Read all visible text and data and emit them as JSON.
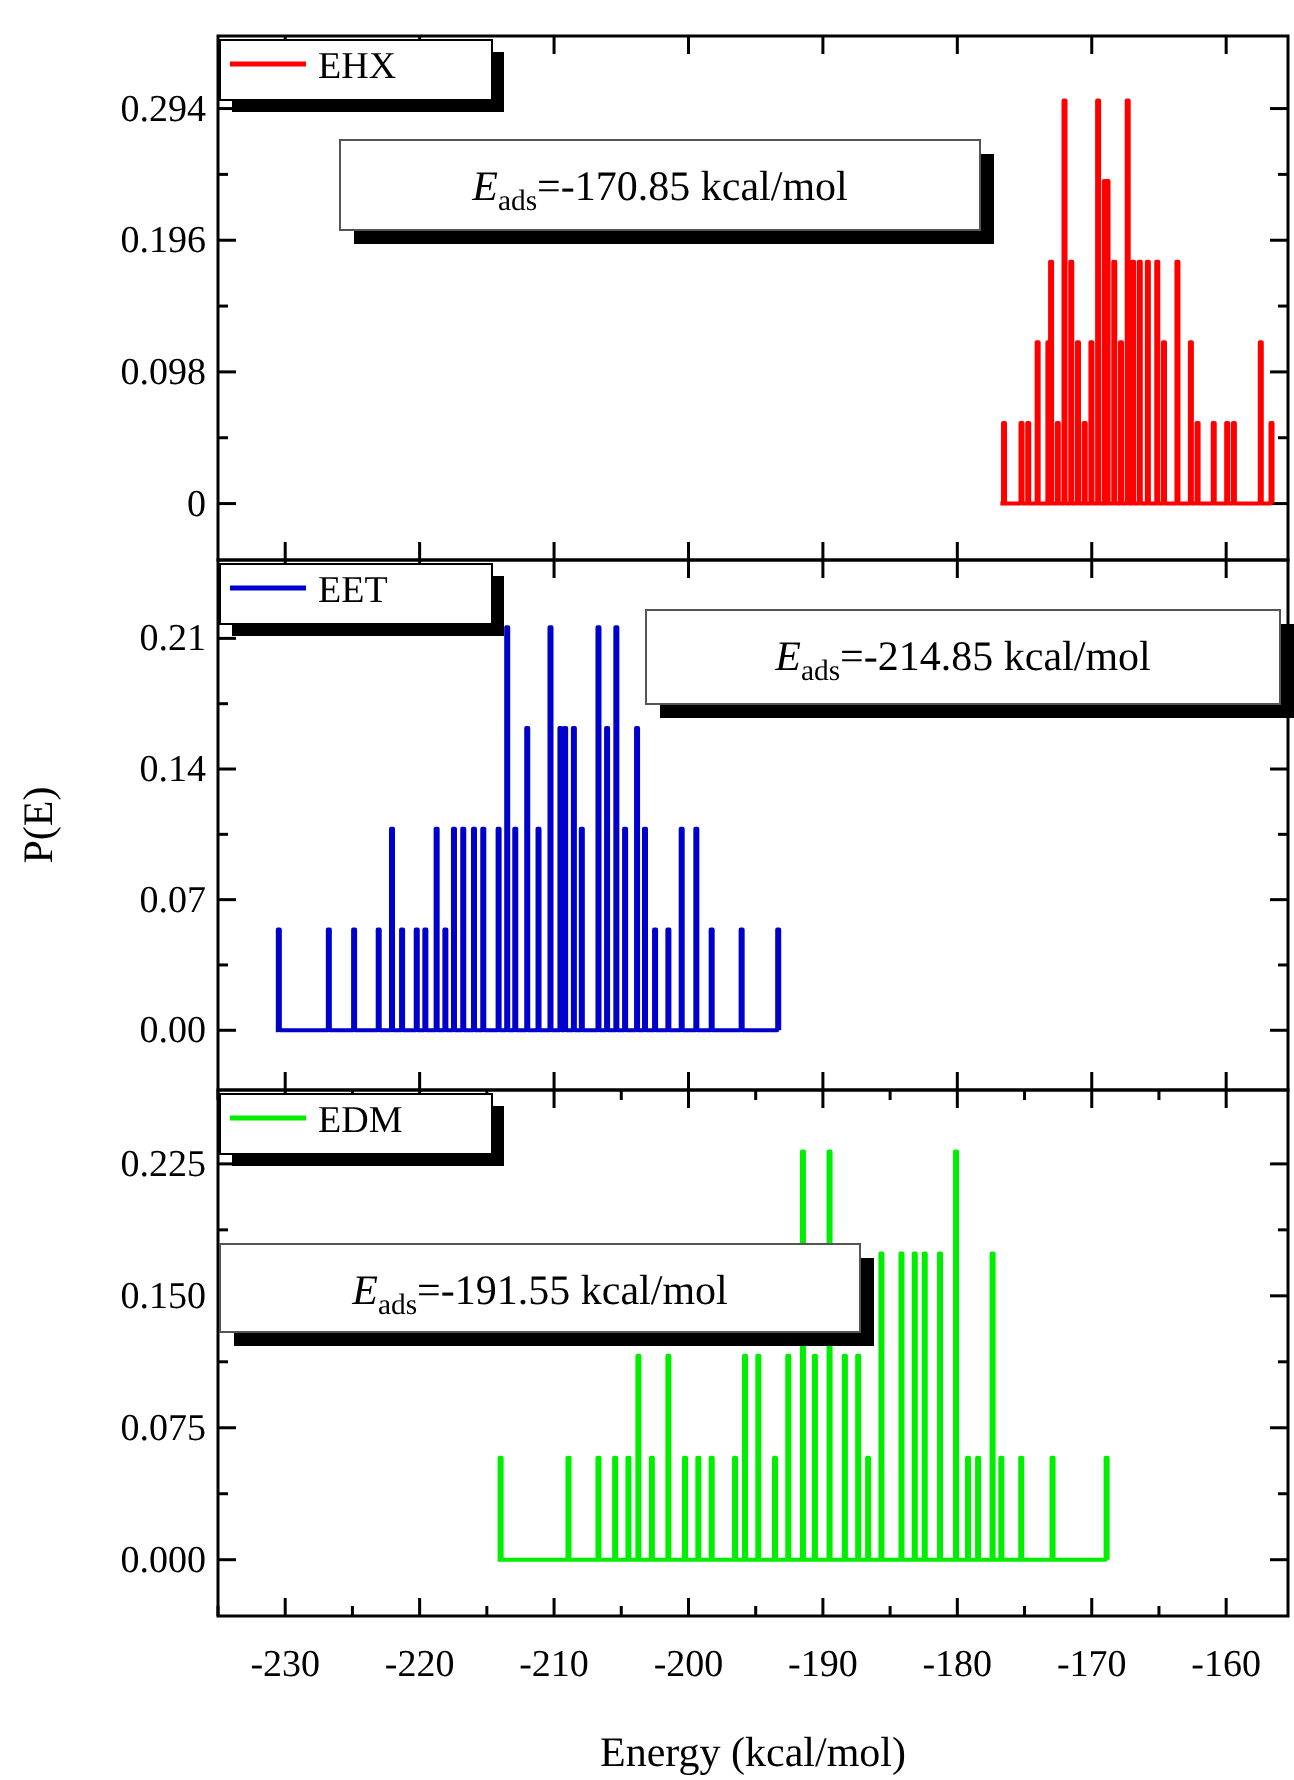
{
  "chart_data": [
    {
      "type": "step",
      "legend": "top left",
      "tick_labels": "y",
      "xlim": [
        -235,
        -155.4
      ],
      "ylim": [
        -0.042,
        0.348
      ],
      "xticks": [
        -230,
        -220,
        -210,
        -200,
        -190,
        -180,
        -170,
        -160
      ],
      "yticks": [
        0,
        {
          "value": 0.049,
          "label": null
        },
        {
          "value": 0.098,
          "label": "0.098"
        },
        {
          "value": 0.147,
          "label": null
        },
        {
          "value": 0.196,
          "label": "0.196"
        },
        {
          "value": 0.245,
          "label": null
        },
        {
          "value": 0.294,
          "label": "0.294"
        }
      ],
      "annotations": [
        "E$_{ads}$=-170.85 kcal/mol"
      ],
      "series": [
        {
          "name": "EHX",
          "color": "#ff0000",
          "x": [
            -176.8,
            -176.6,
            -176.45,
            -175.3,
            -175.15,
            -174.8,
            -174.65,
            -174.1,
            -173.95,
            -173.3,
            -173.2,
            -173.1,
            -172.95,
            -172.6,
            -172.45,
            -172.1,
            -171.95,
            -171.6,
            -171.45,
            -171.1,
            -170.95,
            -170.6,
            -170.45,
            -170.1,
            -169.95,
            -169.6,
            -169.45,
            -169.1,
            -169.0,
            -168.9,
            -168.75,
            -168.4,
            -168.25,
            -167.9,
            -167.75,
            -167.4,
            -167.25,
            -167.0,
            -166.85,
            -166.5,
            -166.35,
            -165.9,
            -165.75,
            -165.2,
            -165.05,
            -164.7,
            -164.55,
            -163.7,
            -163.55,
            -162.7,
            -162.55,
            -162.2,
            -162.05,
            -161.0,
            -160.85,
            -160.0,
            -159.85,
            -159.5,
            -159.35,
            -157.5,
            -157.35,
            -156.7,
            -156.55
          ],
          "values": [
            0,
            0.06,
            0,
            0.06,
            0,
            0.06,
            0,
            0.12,
            0,
            0.12,
            0,
            0.18,
            0,
            0.06,
            0,
            0.3,
            0,
            0.18,
            0,
            0.12,
            0,
            0.06,
            0,
            0.12,
            0,
            0.3,
            0,
            0.24,
            0,
            0.24,
            0,
            0.18,
            0,
            0.12,
            0,
            0.3,
            0,
            0.18,
            0,
            0.18,
            0,
            0.18,
            0,
            0.18,
            0,
            0.12,
            0,
            0.18,
            0,
            0.12,
            0,
            0.06,
            0,
            0.06,
            0,
            0.06,
            0,
            0.06,
            0,
            0.12,
            0,
            0.06,
            0
          ]
        }
      ]
    },
    {
      "type": "step",
      "legend": "top left",
      "tick_labels": "y",
      "ylabel": "P(E)",
      "xlim": [
        -235,
        -155.4
      ],
      "ylim": [
        -0.032,
        0.252
      ],
      "xticks": [
        -230,
        -220,
        -210,
        -200,
        -190,
        -180,
        -170,
        -160
      ],
      "yticks": [
        {
          "value": 0,
          "label": "0.00"
        },
        {
          "value": 0.035,
          "label": null
        },
        {
          "value": 0.07,
          "label": "0.07"
        },
        {
          "value": 0.105,
          "label": null
        },
        {
          "value": 0.14,
          "label": "0.14"
        },
        {
          "value": 0.175,
          "label": null
        },
        {
          "value": 0.21,
          "label": "0.21"
        }
      ],
      "annotations": [
        "E$_{ads}$=-214.85 kcal/mol"
      ],
      "series": [
        {
          "name": "EET",
          "color": "#0000cc",
          "x": [
            -230.7,
            -230.55,
            -230.4,
            -226.83,
            -226.68,
            -224.95,
            -224.8,
            -223.12,
            -222.97,
            -222.13,
            -221.98,
            -221.38,
            -221.23,
            -220.29,
            -220.14,
            -219.65,
            -219.5,
            -218.81,
            -218.66,
            -218.16,
            -218.01,
            -217.52,
            -217.37,
            -216.83,
            -216.68,
            -216.03,
            -215.88,
            -215.34,
            -215.19,
            -214.2,
            -214.05,
            -213.56,
            -213.41,
            -212.96,
            -212.81,
            -212.07,
            -211.92,
            -211.23,
            -211.08,
            -210.34,
            -210.19,
            -209.6,
            -209.45,
            -209.25,
            -209.1,
            -208.6,
            -208.45,
            -208.01,
            -207.86,
            -206.77,
            -206.62,
            -206.13,
            -205.98,
            -205.44,
            -205.29,
            -204.79,
            -204.64,
            -203.9,
            -203.75,
            -203.31,
            -203.16,
            -202.56,
            -202.41,
            -201.57,
            -201.42,
            -200.58,
            -200.43,
            -199.49,
            -199.34,
            -198.35,
            -198.2,
            -196.12,
            -195.97,
            -193.4,
            -193.25
          ],
          "values": [
            0,
            0.054,
            0,
            0.054,
            0,
            0.054,
            0,
            0.054,
            0,
            0.108,
            0,
            0.054,
            0,
            0.054,
            0,
            0.054,
            0,
            0.108,
            0,
            0.054,
            0,
            0.108,
            0,
            0.108,
            0,
            0.108,
            0,
            0.108,
            0,
            0.108,
            0,
            0.216,
            0,
            0.108,
            0,
            0.162,
            0,
            0.108,
            0,
            0.216,
            0,
            0.162,
            0,
            0.162,
            0,
            0.162,
            0,
            0.108,
            0,
            0.216,
            0,
            0.162,
            0,
            0.216,
            0,
            0.108,
            0,
            0.162,
            0,
            0.108,
            0,
            0.054,
            0,
            0.054,
            0,
            0.108,
            0,
            0.108,
            0,
            0.054,
            0,
            0.054,
            0,
            0.054,
            0
          ]
        }
      ]
    },
    {
      "type": "step",
      "legend": "top left",
      "xlabel": "Energy (kcal/mol)",
      "xlim": [
        -235,
        -155.4
      ],
      "ylim": [
        -0.032,
        0.267
      ],
      "xticks": [
        {
          "value": -235,
          "label": null
        },
        -230,
        {
          "value": -225,
          "label": null
        },
        -220,
        {
          "value": -215,
          "label": null
        },
        -210,
        {
          "value": -205,
          "label": null
        },
        -200,
        {
          "value": -195,
          "label": null
        },
        -190,
        {
          "value": -185,
          "label": null
        },
        -180,
        {
          "value": -175,
          "label": null
        },
        -170,
        {
          "value": -165,
          "label": null
        },
        -160
      ],
      "yticks": [
        {
          "value": 0,
          "label": "0.000"
        },
        {
          "value": 0.0375,
          "label": null
        },
        {
          "value": 0.075,
          "label": "0.075"
        },
        {
          "value": 0.1125,
          "label": null
        },
        {
          "value": 0.15,
          "label": "0.150"
        },
        {
          "value": 0.1875,
          "label": null
        },
        {
          "value": 0.225,
          "label": "0.225"
        }
      ],
      "annotations": [
        "E$_{ads}$=-191.55 kcal/mol"
      ],
      "series": [
        {
          "name": "EDM",
          "color": "#00ee00",
          "x": [
            -214.2,
            -214.05,
            -213.9,
            -209.0,
            -208.85,
            -206.77,
            -206.62,
            -205.53,
            -205.38,
            -204.54,
            -204.39,
            -203.8,
            -203.65,
            -202.8,
            -202.65,
            -201.57,
            -201.42,
            -200.33,
            -200.18,
            -199.34,
            -199.19,
            -198.35,
            -198.2,
            -196.61,
            -196.46,
            -195.87,
            -195.72,
            -194.88,
            -194.73,
            -193.64,
            -193.49,
            -192.65,
            -192.5,
            -191.56,
            -191.41,
            -190.67,
            -190.52,
            -189.58,
            -189.43,
            -188.44,
            -188.29,
            -187.45,
            -187.3,
            -186.71,
            -186.56,
            -185.72,
            -185.57,
            -184.23,
            -184.08,
            -183.24,
            -183.09,
            -182.5,
            -182.35,
            -181.36,
            -181.21,
            -180.17,
            -180.02,
            -179.28,
            -179.13,
            -178.53,
            -178.38,
            -177.45,
            -177.3,
            -176.8,
            -176.65,
            -175.32,
            -175.17,
            -172.99,
            -172.84,
            -168.97,
            -168.82
          ],
          "values": [
            0,
            0.058,
            0,
            0.058,
            0,
            0.058,
            0,
            0.058,
            0,
            0.058,
            0,
            0.116,
            0,
            0.058,
            0,
            0.116,
            0,
            0.058,
            0,
            0.058,
            0,
            0.058,
            0,
            0.058,
            0,
            0.116,
            0,
            0.116,
            0,
            0.058,
            0,
            0.116,
            0,
            0.232,
            0,
            0.116,
            0,
            0.232,
            0,
            0.116,
            0,
            0.116,
            0,
            0.058,
            0,
            0.174,
            0,
            0.174,
            0,
            0.174,
            0,
            0.174,
            0,
            0.174,
            0,
            0.232,
            0,
            0.058,
            0,
            0.058,
            0,
            0.174,
            0,
            0.058,
            0,
            0.058,
            0,
            0.058,
            0,
            0.058,
            0
          ]
        }
      ]
    }
  ]
}
